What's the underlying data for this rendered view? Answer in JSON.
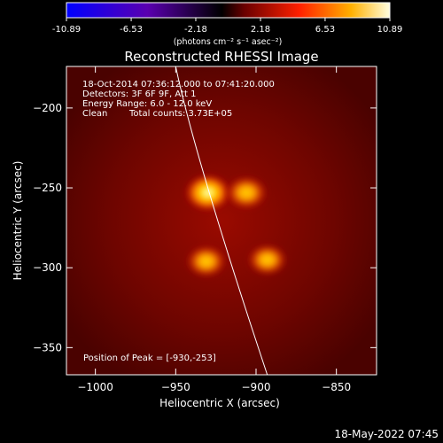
{
  "colorbar": {
    "ticks": [
      "-10.89",
      "-6.53",
      "-2.18",
      "2.18",
      "6.53",
      "10.89"
    ],
    "tick_values": [
      -10.89,
      -6.53,
      -2.18,
      2.18,
      6.53,
      10.89
    ],
    "range": [
      -10.89,
      10.89
    ],
    "units": "(photons cm⁻² s⁻¹ asec⁻²)"
  },
  "chart_data": {
    "type": "heatmap",
    "title": "Reconstructed RHESSI Image",
    "xlabel": "Heliocentric X (arcsec)",
    "ylabel": "Heliocentric Y (arcsec)",
    "xlim": [
      -1018,
      -825
    ],
    "ylim": [
      -367,
      -174
    ],
    "x_ticks": [
      -1000,
      -950,
      -900,
      -850
    ],
    "x_tick_labels": [
      "−1000",
      "−950",
      "−900",
      "−850"
    ],
    "y_ticks": [
      -200,
      -250,
      -300,
      -350
    ],
    "y_tick_labels": [
      "−200",
      "−250",
      "−300",
      "−350"
    ],
    "colormap": "red-temperature",
    "sources": [
      {
        "x": -930,
        "y": -253,
        "peak": 10.89
      },
      {
        "x": -906,
        "y": -253,
        "peak": 8.6
      },
      {
        "x": -931,
        "y": -296,
        "peak": 7.8
      },
      {
        "x": -893,
        "y": -295,
        "peak": 7.5
      }
    ],
    "limb_curve": [
      [
        -950,
        -174
      ],
      [
        -930,
        -250
      ],
      [
        -893,
        -367
      ]
    ],
    "peak_position": [
      -930,
      -253
    ]
  },
  "info": {
    "line1": "18-Oct-2014 07:36:12.000 to 07:41:20.000",
    "line2": "Detectors: 3F 6F 9F, Att 1",
    "line3": "Energy Range: 6.0 - 12.0 keV",
    "line4_a": "Clean",
    "line4_b": "Total counts: 3.73E+05",
    "peak": "Position of Peak = [-930,-253]"
  },
  "footer": {
    "timestamp": "18-May-2022 07:45"
  }
}
